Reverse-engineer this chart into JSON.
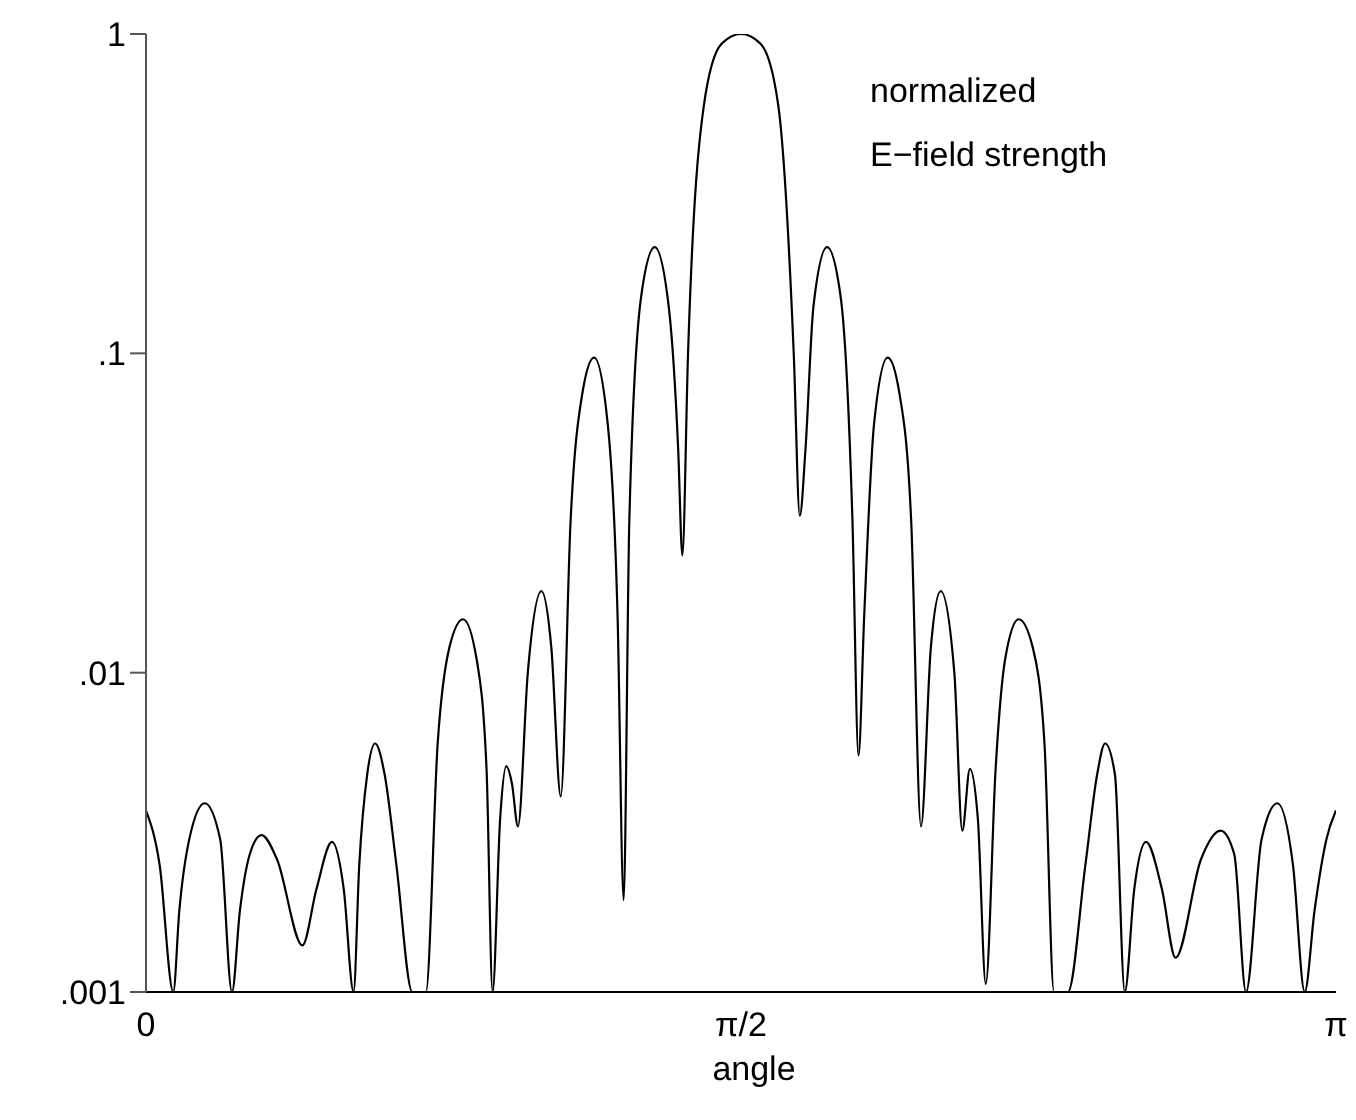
{
  "chart_data": {
    "type": "line",
    "xlabel": "angle",
    "annotations": [
      "normalized\nE−field strength"
    ],
    "x": [
      0,
      0.036,
      0.072,
      0.088,
      0.114,
      0.155,
      0.196,
      0.227,
      0.248,
      0.274,
      0.305,
      0.346,
      0.413,
      0.45,
      0.491,
      0.522,
      0.548,
      0.563,
      0.584,
      0.605,
      0.63,
      0.661,
      0.703,
      0.739,
      0.77,
      0.801,
      0.837,
      0.873,
      0.899,
      0.915,
      0.935,
      0.951,
      0.966,
      0.982,
      1.008,
      1.044,
      1.07,
      1.095,
      1.121,
      1.152,
      1.183,
      1.219,
      1.245,
      1.261,
      1.276,
      1.307,
      1.343,
      1.38,
      1.405,
      1.416,
      1.431,
      1.473,
      1.519,
      1.571,
      1.623,
      1.669,
      1.71,
      1.726,
      1.741,
      1.762,
      1.798,
      1.834,
      1.865,
      1.881,
      1.896,
      1.922,
      1.958,
      1.989,
      2.02,
      2.046,
      2.072,
      2.098,
      2.134,
      2.155,
      2.175,
      2.196,
      2.217,
      2.243,
      2.268,
      2.304,
      2.341,
      2.372,
      2.397,
      2.434,
      2.48,
      2.511,
      2.532,
      2.558,
      2.584,
      2.609,
      2.64,
      2.682,
      2.718,
      2.785,
      2.837,
      2.873,
      2.904,
      2.945,
      2.987,
      3.028,
      3.059,
      3.085,
      3.116,
      3.1416
    ],
    "series": [
      {
        "color": "#000000",
        "values": [
          0.0037,
          0.0025,
          0.001,
          0.0018,
          0.003,
          0.0039,
          0.003,
          0.001,
          0.0018,
          0.0027,
          0.0031,
          0.0026,
          0.0014,
          0.0021,
          0.00295,
          0.0021,
          0.001,
          0.0025,
          0.0048,
          0.006,
          0.0048,
          0.0025,
          0.001,
          0.001,
          0.006,
          0.012,
          0.0147,
          0.011,
          0.005,
          0.001,
          0.0035,
          0.0051,
          0.0045,
          0.0033,
          0.01,
          0.018,
          0.012,
          0.0041,
          0.03,
          0.075,
          0.097,
          0.06,
          0.015,
          0.00194,
          0.03,
          0.15,
          0.215,
          0.14,
          0.05,
          0.0233,
          0.1,
          0.6,
          0.93,
          1.0,
          0.93,
          0.6,
          0.1,
          0.031,
          0.05,
          0.14,
          0.215,
          0.15,
          0.03,
          0.0055,
          0.015,
          0.06,
          0.097,
          0.075,
          0.03,
          0.0033,
          0.012,
          0.018,
          0.01,
          0.0032,
          0.005,
          0.0035,
          0.00106,
          0.005,
          0.011,
          0.0147,
          0.012,
          0.006,
          0.001,
          0.001,
          0.0025,
          0.0048,
          0.006,
          0.0048,
          0.001,
          0.0021,
          0.00295,
          0.0021,
          0.00128,
          0.0026,
          0.0032,
          0.0027,
          0.001,
          0.003,
          0.0039,
          0.0025,
          0.001,
          0.0018,
          0.003,
          0.0037
        ]
      }
    ],
    "log": "y",
    "xlim": [
      0,
      3.1416
    ],
    "xticks": [
      {
        "value": 0,
        "label": "0"
      },
      {
        "value": 1.5708,
        "label": "π/2"
      },
      {
        "value": 3.1416,
        "label": "π"
      }
    ],
    "ylim": [
      0.001,
      1
    ],
    "yticks": [
      {
        "value": 0.001,
        "label": ".001"
      },
      {
        "value": 0.01,
        "label": ".01"
      },
      {
        "value": 0.1,
        "label": ".1"
      },
      {
        "value": 1,
        "label": "1"
      }
    ],
    "grid": false,
    "legend": false,
    "marker": "none",
    "line_style": "solid"
  }
}
